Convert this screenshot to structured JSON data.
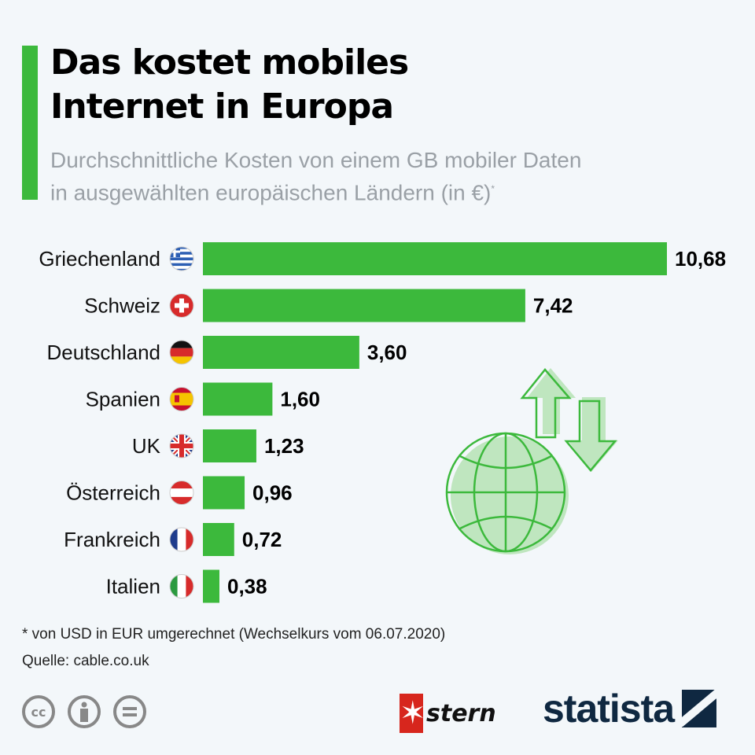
{
  "header": {
    "title_line1": "Das kostet mobiles",
    "title_line2": "Internet in Europa",
    "subtitle_line1": "Durchschnittliche Kosten von einem GB mobiler Daten",
    "subtitle_line2": "in ausgewählten europäischen Ländern (in €)",
    "subtitle_mark": "*"
  },
  "chart_data": {
    "type": "bar",
    "orientation": "horizontal",
    "categories": [
      "Griechenland",
      "Schweiz",
      "Deutschland",
      "Spanien",
      "UK",
      "Österreich",
      "Frankreich",
      "Italien"
    ],
    "values": [
      10.68,
      7.42,
      3.6,
      1.6,
      1.23,
      0.96,
      0.72,
      0.38
    ],
    "value_labels": [
      "10,68",
      "7,42",
      "3,60",
      "1,60",
      "1,23",
      "0,96",
      "0,72",
      "0,38"
    ],
    "flags": [
      "greece-flag",
      "switzerland-flag",
      "germany-flag",
      "spain-flag",
      "uk-flag",
      "austria-flag",
      "france-flag",
      "italy-flag"
    ],
    "bar_color": "#3cb93c",
    "grid": false,
    "xlim": [
      0,
      10.68
    ]
  },
  "footer": {
    "note": "* von USD in EUR umgerechnet (Wechselkurs vom 06.07.2020)",
    "source": "Quelle: cable.co.uk",
    "license_icons": [
      "cc-icon",
      "by-icon",
      "nd-icon"
    ],
    "cc_label": "cc",
    "logos": {
      "stern": "stern",
      "statista": "statista"
    }
  },
  "colors": {
    "accent": "#3cb93c",
    "subtitle": "#9aa0a6",
    "statista": "#0f2841",
    "stern": "#d7261d"
  }
}
